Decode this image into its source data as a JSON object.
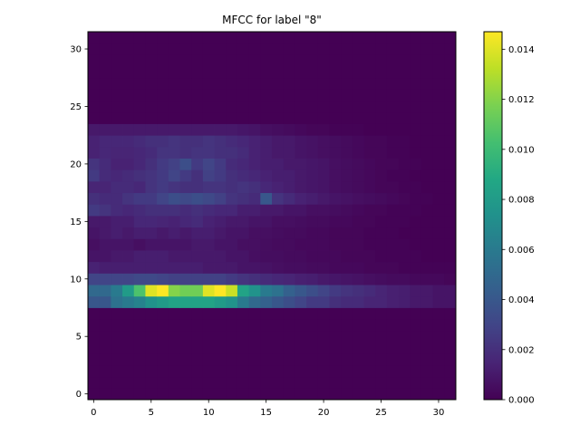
{
  "chart_data": {
    "type": "heatmap",
    "title": "MFCC for label \"8\"",
    "xlabel": "",
    "ylabel": "",
    "xlim": [
      -0.5,
      31.5
    ],
    "ylim": [
      -0.5,
      31.5
    ],
    "x_ticks": [
      0,
      5,
      10,
      15,
      20,
      25,
      30
    ],
    "y_ticks": [
      0,
      5,
      10,
      15,
      20,
      25,
      30
    ],
    "colormap": "viridis",
    "colorbar": {
      "vmin": 0.0,
      "vmax": 0.0147,
      "ticks": [
        0.0,
        0.002,
        0.004,
        0.006,
        0.008,
        0.01,
        0.012,
        0.014
      ],
      "tick_labels": [
        "0.000",
        "0.002",
        "0.004",
        "0.006",
        "0.008",
        "0.010",
        "0.012",
        "0.014"
      ]
    },
    "grid": false,
    "rows": 32,
    "cols": 32,
    "nonzero_rows": [
      {
        "y": 8,
        "values": [
          0.004,
          0.004,
          0.0055,
          0.006,
          0.0065,
          0.0075,
          0.008,
          0.0085,
          0.0085,
          0.0085,
          0.0085,
          0.008,
          0.0075,
          0.006,
          0.005,
          0.0045,
          0.004,
          0.0035,
          0.003,
          0.0025,
          0.0025,
          0.002,
          0.0018,
          0.0018,
          0.0015,
          0.0015,
          0.0013,
          0.0012,
          0.001,
          0.001,
          0.0008,
          0.0008
        ]
      },
      {
        "y": 9,
        "values": [
          0.005,
          0.005,
          0.006,
          0.008,
          0.0105,
          0.014,
          0.0147,
          0.012,
          0.0115,
          0.0115,
          0.014,
          0.0147,
          0.0135,
          0.0085,
          0.0075,
          0.006,
          0.0055,
          0.0045,
          0.004,
          0.0035,
          0.003,
          0.0025,
          0.0022,
          0.002,
          0.0018,
          0.0015,
          0.0013,
          0.0012,
          0.001,
          0.001,
          0.0008,
          0.0008
        ]
      },
      {
        "y": 10,
        "values": [
          0.003,
          0.003,
          0.003,
          0.003,
          0.0032,
          0.0032,
          0.003,
          0.0028,
          0.0028,
          0.0028,
          0.0028,
          0.0028,
          0.0025,
          0.0022,
          0.002,
          0.0018,
          0.0016,
          0.0015,
          0.0013,
          0.0012,
          0.001,
          0.0009,
          0.0008,
          0.0007,
          0.0006,
          0.0005,
          0.0004,
          0.0004,
          0.0003,
          0.0003,
          0.0003,
          0.0002
        ]
      },
      {
        "y": 11,
        "values": [
          0.0014,
          0.0012,
          0.0012,
          0.0012,
          0.0012,
          0.0012,
          0.0012,
          0.0012,
          0.0012,
          0.0012,
          0.001,
          0.001,
          0.001,
          0.0008,
          0.0008,
          0.0007,
          0.0006,
          0.0005,
          0.0005,
          0.0004,
          0.0004,
          0.0003,
          0.0003,
          0.0003,
          0.0002,
          0.0002,
          0.0002,
          0.0001,
          0.0001,
          0.0001,
          0.0001,
          0.0001
        ]
      },
      {
        "y": 12,
        "values": [
          0.0008,
          0.0008,
          0.001,
          0.001,
          0.0012,
          0.0012,
          0.0012,
          0.001,
          0.001,
          0.001,
          0.001,
          0.001,
          0.0008,
          0.0008,
          0.0006,
          0.0005,
          0.0005,
          0.0004,
          0.0004,
          0.0003,
          0.0003,
          0.0003,
          0.0002,
          0.0002,
          0.0002,
          0.0001,
          0.0001,
          0.0001,
          0.0001,
          0.0,
          0.0,
          0.0
        ]
      },
      {
        "y": 13,
        "values": [
          0.0006,
          0.0008,
          0.0008,
          0.0008,
          0.0006,
          0.0008,
          0.0008,
          0.0008,
          0.0008,
          0.001,
          0.001,
          0.0008,
          0.0008,
          0.0006,
          0.0006,
          0.0005,
          0.0004,
          0.0004,
          0.0003,
          0.0003,
          0.0003,
          0.0002,
          0.0002,
          0.0002,
          0.0001,
          0.0001,
          0.0001,
          0.0001,
          0.0,
          0.0,
          0.0,
          0.0
        ]
      },
      {
        "y": 14,
        "values": [
          0.0008,
          0.001,
          0.0012,
          0.001,
          0.0012,
          0.0012,
          0.001,
          0.0012,
          0.001,
          0.0012,
          0.0012,
          0.001,
          0.0008,
          0.0008,
          0.0006,
          0.0006,
          0.0005,
          0.0004,
          0.0004,
          0.0003,
          0.0003,
          0.0002,
          0.0002,
          0.0002,
          0.0001,
          0.0001,
          0.0001,
          0.0,
          0.0,
          0.0,
          0.0,
          0.0
        ]
      },
      {
        "y": 15,
        "values": [
          0.001,
          0.001,
          0.0012,
          0.0012,
          0.0016,
          0.0016,
          0.0015,
          0.0014,
          0.0016,
          0.0018,
          0.0014,
          0.0012,
          0.001,
          0.001,
          0.0008,
          0.0008,
          0.0006,
          0.0006,
          0.0005,
          0.0004,
          0.0004,
          0.0003,
          0.0003,
          0.0002,
          0.0002,
          0.0001,
          0.0001,
          0.0001,
          0.0,
          0.0,
          0.0,
          0.0
        ]
      },
      {
        "y": 16,
        "values": [
          0.0025,
          0.0022,
          0.0018,
          0.0016,
          0.0018,
          0.002,
          0.002,
          0.002,
          0.0018,
          0.002,
          0.0018,
          0.0016,
          0.0016,
          0.0012,
          0.0012,
          0.001,
          0.001,
          0.0008,
          0.0008,
          0.0006,
          0.0006,
          0.0005,
          0.0004,
          0.0003,
          0.0002,
          0.0002,
          0.0001,
          0.0001,
          0.0001,
          0.0,
          0.0,
          0.0
        ]
      },
      {
        "y": 17,
        "values": [
          0.002,
          0.0018,
          0.0018,
          0.0022,
          0.0025,
          0.0025,
          0.003,
          0.0035,
          0.0032,
          0.0035,
          0.0032,
          0.0028,
          0.0022,
          0.002,
          0.0018,
          0.004,
          0.0022,
          0.0018,
          0.0014,
          0.0012,
          0.001,
          0.0008,
          0.0007,
          0.0006,
          0.0005,
          0.0004,
          0.0003,
          0.0002,
          0.0001,
          0.0001,
          0.0,
          0.0
        ]
      },
      {
        "y": 18,
        "values": [
          0.0015,
          0.0015,
          0.0018,
          0.0018,
          0.0016,
          0.0022,
          0.0025,
          0.0022,
          0.002,
          0.002,
          0.0022,
          0.0022,
          0.002,
          0.0022,
          0.002,
          0.0016,
          0.0014,
          0.0012,
          0.001,
          0.0009,
          0.0008,
          0.0006,
          0.0005,
          0.0004,
          0.0003,
          0.0002,
          0.0002,
          0.0001,
          0.0001,
          0.0,
          0.0,
          0.0
        ]
      },
      {
        "y": 19,
        "values": [
          0.0025,
          0.0018,
          0.0016,
          0.0018,
          0.002,
          0.0022,
          0.0025,
          0.003,
          0.0025,
          0.002,
          0.0028,
          0.0025,
          0.002,
          0.0018,
          0.0016,
          0.0014,
          0.0012,
          0.0012,
          0.001,
          0.0009,
          0.0008,
          0.0006,
          0.0005,
          0.0004,
          0.0003,
          0.0002,
          0.0001,
          0.0001,
          0.0,
          0.0,
          0.0,
          0.0
        ]
      },
      {
        "y": 20,
        "values": [
          0.0022,
          0.0018,
          0.0014,
          0.0014,
          0.0016,
          0.002,
          0.0025,
          0.0028,
          0.0035,
          0.0025,
          0.003,
          0.0025,
          0.0018,
          0.0016,
          0.0014,
          0.0012,
          0.0012,
          0.001,
          0.001,
          0.0009,
          0.0008,
          0.0006,
          0.0005,
          0.0004,
          0.0003,
          0.0002,
          0.0002,
          0.0001,
          0.0001,
          0.0,
          0.0,
          0.0
        ]
      },
      {
        "y": 21,
        "values": [
          0.0014,
          0.0016,
          0.0015,
          0.0015,
          0.0016,
          0.0018,
          0.0022,
          0.0022,
          0.002,
          0.0022,
          0.0022,
          0.002,
          0.002,
          0.0018,
          0.0014,
          0.0012,
          0.001,
          0.001,
          0.0008,
          0.0007,
          0.0006,
          0.0005,
          0.0004,
          0.0003,
          0.0002,
          0.0002,
          0.0001,
          0.0001,
          0.0,
          0.0,
          0.0,
          0.0
        ]
      },
      {
        "y": 22,
        "values": [
          0.0014,
          0.0016,
          0.0016,
          0.0016,
          0.0018,
          0.002,
          0.002,
          0.0022,
          0.002,
          0.002,
          0.0022,
          0.002,
          0.0018,
          0.0016,
          0.0014,
          0.0012,
          0.001,
          0.001,
          0.0008,
          0.0007,
          0.0006,
          0.0005,
          0.0004,
          0.0003,
          0.0002,
          0.0002,
          0.0001,
          0.0001,
          0.0,
          0.0,
          0.0,
          0.0
        ]
      },
      {
        "y": 23,
        "values": [
          0.001,
          0.001,
          0.001,
          0.001,
          0.001,
          0.001,
          0.001,
          0.001,
          0.001,
          0.001,
          0.001,
          0.001,
          0.001,
          0.0009,
          0.0008,
          0.0006,
          0.0005,
          0.0004,
          0.0003,
          0.0002,
          0.0002,
          0.0001,
          0.0001,
          0.0001,
          0.0,
          0.0,
          0.0,
          0.0,
          0.0,
          0.0,
          0.0,
          0.0
        ]
      }
    ]
  }
}
